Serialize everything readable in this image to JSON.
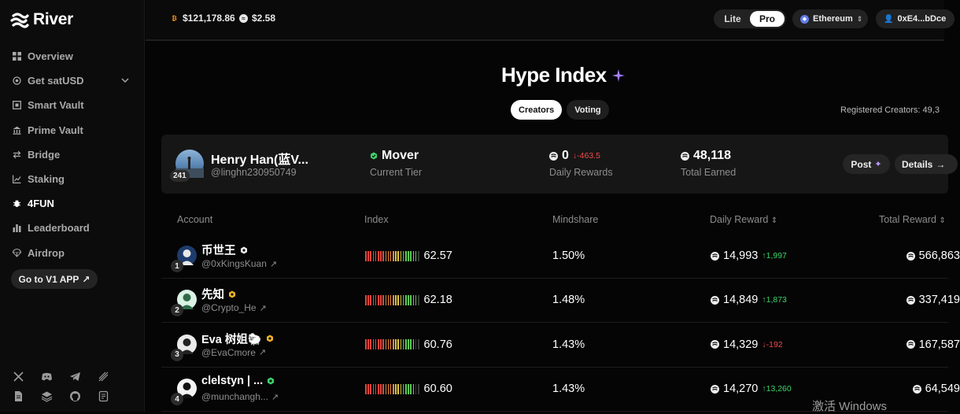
{
  "app": {
    "name": "River"
  },
  "sidebar": {
    "items": [
      {
        "label": "Overview",
        "icon": "grid-icon",
        "active": false
      },
      {
        "label": "Get satUSD",
        "icon": "coin-icon",
        "active": false,
        "has_chevron": true
      },
      {
        "label": "Smart Vault",
        "icon": "vault-icon",
        "active": false
      },
      {
        "label": "Prime Vault",
        "icon": "bank-icon",
        "active": false
      },
      {
        "label": "Bridge",
        "icon": "swap-icon",
        "active": false
      },
      {
        "label": "Staking",
        "icon": "chart-line-icon",
        "active": false
      },
      {
        "label": "4FUN",
        "icon": "bug-icon",
        "active": true
      },
      {
        "label": "Leaderboard",
        "icon": "bars-icon",
        "active": false
      },
      {
        "label": "Airdrop",
        "icon": "parachute-icon",
        "active": false
      }
    ],
    "v1_button": "Go to V1 APP",
    "socials": [
      "x-icon",
      "discord-icon",
      "telegram-icon",
      "mirror-icon",
      "docs-icon",
      "layers-icon",
      "github-icon",
      "scroll-icon"
    ]
  },
  "topbar": {
    "btc_price": "$121,178.86",
    "river_price": "$2.58",
    "modes": [
      "Lite",
      "Pro"
    ],
    "active_mode": "Pro",
    "network": "Ethereum",
    "wallet": "0xE4...bDce"
  },
  "hype": {
    "title": "Hype Index",
    "tabs": [
      "Creators",
      "Voting"
    ],
    "active_tab": "Creators",
    "registered": "Registered Creators: 49,3"
  },
  "me": {
    "rank": "241",
    "name": "Henry Han(蓝V...",
    "handle": "@linghn230950749",
    "tier": "Mover",
    "tier_label": "Current Tier",
    "daily_rewards": "0",
    "daily_change": "↓-463.5",
    "daily_label": "Daily Rewards",
    "total_earned": "48,118",
    "total_label": "Total Earned",
    "post_label": "Post",
    "details_label": "Details"
  },
  "table": {
    "headers": {
      "account": "Account",
      "index": "Index",
      "mindshare": "Mindshare",
      "daily_reward": "Daily Reward",
      "total_reward": "Total Reward"
    },
    "rows": [
      {
        "rank": "1",
        "name": "币世王",
        "handle": "@0xKingsKuan",
        "badge_color": "#f0f0f0",
        "index": "62.57",
        "index_level": 0.6257,
        "mindshare": "1.50%",
        "daily": "14,993",
        "daily_change": "↑1,997",
        "daily_up": true,
        "total": "566,863"
      },
      {
        "rank": "2",
        "name": "先知",
        "handle": "@Crypto_He",
        "badge_color": "#f0b429",
        "index": "62.18",
        "index_level": 0.6218,
        "mindshare": "1.48%",
        "daily": "14,849",
        "daily_change": "↑1,873",
        "daily_up": true,
        "total": "337,419"
      },
      {
        "rank": "3",
        "name": "Eva 树姐🐑",
        "handle": "@EvaCmore",
        "badge_color": "#f0b429",
        "index": "60.76",
        "index_level": 0.6076,
        "mindshare": "1.43%",
        "daily": "14,329",
        "daily_change": "↓-192",
        "daily_up": false,
        "total": "167,587"
      },
      {
        "rank": "4",
        "name": "clelstyn | ...",
        "handle": "@munchangh...",
        "badge_color": "#3ed46b",
        "index": "60.60",
        "index_level": 0.606,
        "mindshare": "1.43%",
        "daily": "14,270",
        "daily_change": "↑13,260",
        "daily_up": true,
        "total": "64,549"
      }
    ]
  },
  "watermark": "激活 Windows"
}
